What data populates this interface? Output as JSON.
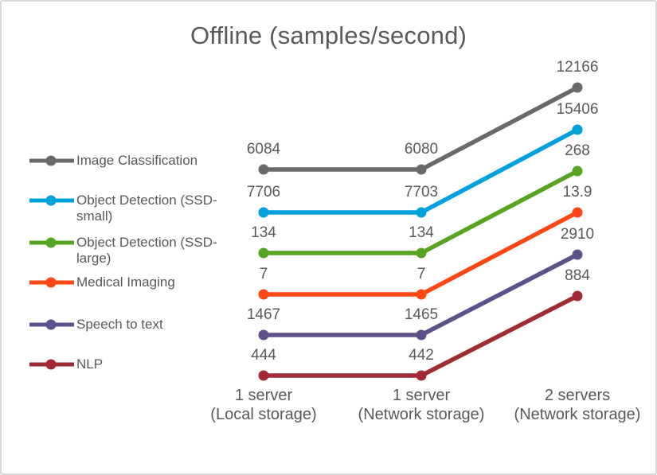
{
  "slide": {
    "background": "#FFFFFF",
    "border_color": "#D9D9D9",
    "text_color": "#595959"
  },
  "chart_data": {
    "type": "line",
    "title": "Offline (samples/second)",
    "legend_position": "left",
    "grid": false,
    "value_axis_visible": false,
    "shared_value_axis": false,
    "data_labels_shown": true,
    "categories": [
      {
        "line1": "1 server",
        "line2": "(Local storage)"
      },
      {
        "line1": "1 server",
        "line2": "(Network storage)"
      },
      {
        "line1": "2 servers",
        "line2": "(Network storage)"
      }
    ],
    "series": [
      {
        "name": "Image Classification",
        "legend_lines": [
          "Image Classification"
        ],
        "color": "#696969",
        "values": [
          6084,
          6080,
          12166
        ]
      },
      {
        "name": "Object Detection (SSD-small)",
        "legend_lines": [
          "Object Detection (SSD-",
          "small)"
        ],
        "color": "#00A1DC",
        "values": [
          7706,
          7703,
          15406
        ]
      },
      {
        "name": "Object Detection (SSD-large)",
        "legend_lines": [
          "Object Detection (SSD-",
          "large)"
        ],
        "color": "#56A421",
        "values": [
          134,
          134,
          268
        ]
      },
      {
        "name": "Medical Imaging",
        "legend_lines": [
          "Medical Imaging"
        ],
        "color": "#FF4713",
        "values": [
          7,
          7,
          13.9
        ]
      },
      {
        "name": "Speech to text",
        "legend_lines": [
          "Speech to text"
        ],
        "color": "#5E5089",
        "values": [
          1467,
          1465,
          2910
        ]
      },
      {
        "name": "NLP",
        "legend_lines": [
          "NLP"
        ],
        "color": "#A02B35",
        "values": [
          444,
          442,
          884
        ]
      }
    ]
  }
}
